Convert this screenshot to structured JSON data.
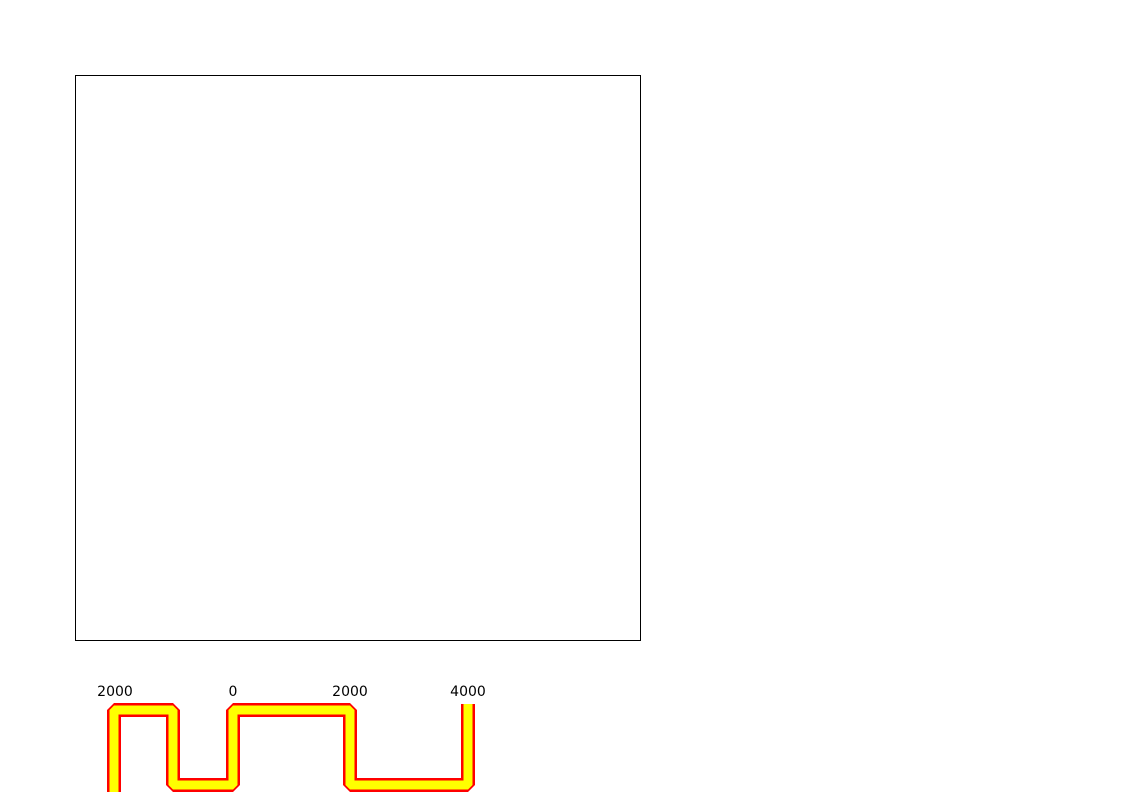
{
  "scale_bar": {
    "labels": [
      "2000",
      "0",
      "2000",
      "4000"
    ],
    "fill_color": "#ffff00",
    "outline_color": "#ff0000"
  }
}
